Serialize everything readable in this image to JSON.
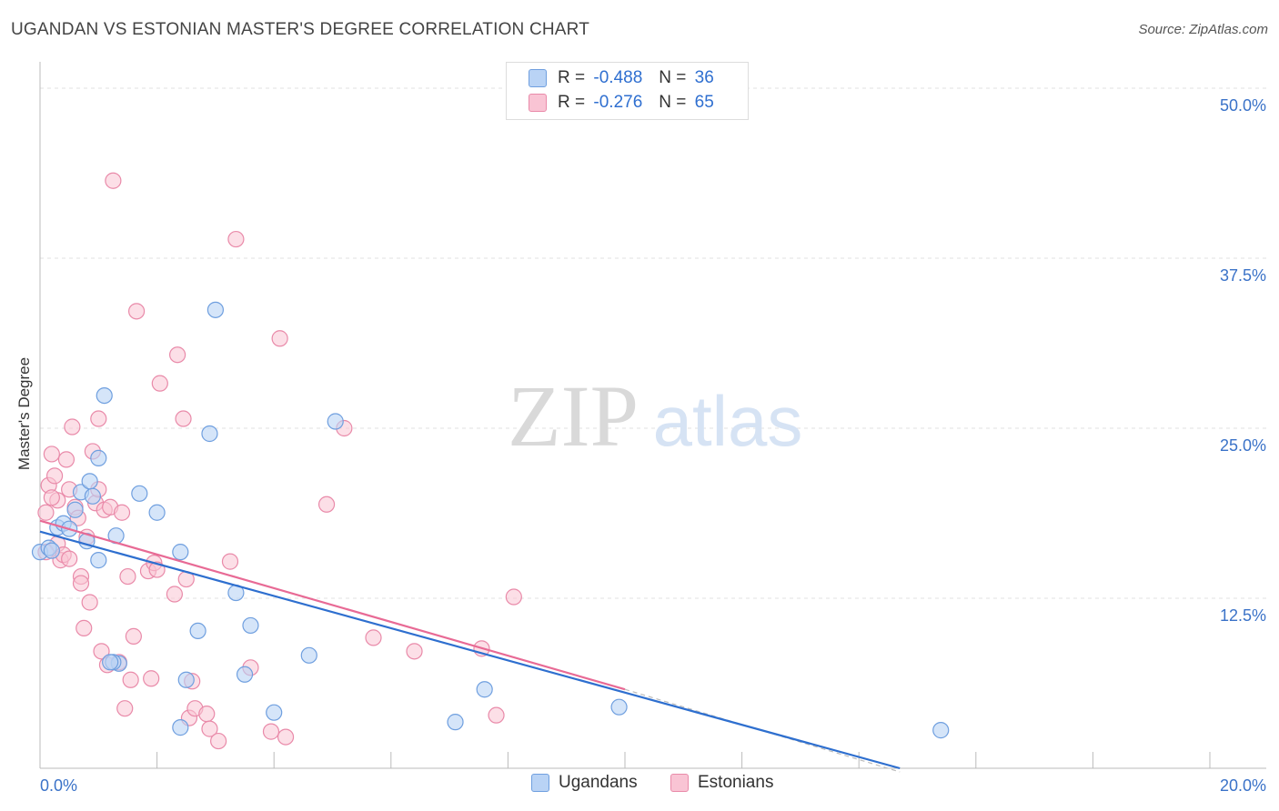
{
  "header": {
    "title": "UGANDAN VS ESTONIAN MASTER'S DEGREE CORRELATION CHART",
    "source": "Source: ZipAtlas.com"
  },
  "watermark": {
    "part1": "ZIP",
    "part2": "atlas"
  },
  "colors": {
    "ugandan_fill": "#b9d3f5",
    "ugandan_stroke": "#6f9fdf",
    "ugandan_line": "#2e6fcf",
    "estonian_fill": "#f9c4d4",
    "estonian_stroke": "#e98aa9",
    "estonian_line": "#e86a95",
    "tick_label": "#3a72c8"
  },
  "legend_top": {
    "rows": [
      {
        "r_label": "R =",
        "r_value": "-0.488",
        "n_label": "N =",
        "n_value": "36"
      },
      {
        "r_label": "R =",
        "r_value": "-0.276",
        "n_label": "N =",
        "n_value": "65"
      }
    ]
  },
  "legend_bottom": {
    "ugandans": "Ugandans",
    "estonians": "Estonians"
  },
  "chart_data": {
    "type": "scatter",
    "title": "UGANDAN VS ESTONIAN MASTER'S DEGREE CORRELATION CHART",
    "ylabel": "Master's Degree",
    "xlabel": "",
    "xlim": [
      0,
      20
    ],
    "ylim": [
      0,
      50
    ],
    "x_tick_labels": [
      "0.0%",
      "20.0%"
    ],
    "y_ticks": [
      {
        "value": 12.5,
        "label": "12.5%"
      },
      {
        "value": 25,
        "label": "25.0%"
      },
      {
        "value": 37.5,
        "label": "37.5%"
      },
      {
        "value": 50,
        "label": "50.0%"
      }
    ],
    "grid": "horizontal dashed",
    "series": [
      {
        "name": "Ugandans",
        "r": -0.488,
        "n": 36,
        "trend": {
          "x0": 0,
          "y0": 17.4,
          "x1": 14.7,
          "y1": 0
        },
        "points": [
          [
            0.0,
            15.9
          ],
          [
            0.15,
            16.2
          ],
          [
            0.3,
            17.7
          ],
          [
            0.4,
            18.0
          ],
          [
            0.6,
            19.0
          ],
          [
            0.7,
            20.3
          ],
          [
            0.8,
            16.7
          ],
          [
            0.85,
            21.1
          ],
          [
            1.0,
            22.8
          ],
          [
            1.0,
            15.3
          ],
          [
            1.1,
            27.4
          ],
          [
            1.35,
            7.7
          ],
          [
            1.25,
            7.8
          ],
          [
            1.3,
            17.1
          ],
          [
            1.7,
            20.2
          ],
          [
            2.0,
            18.8
          ],
          [
            2.4,
            15.9
          ],
          [
            2.4,
            3.0
          ],
          [
            2.5,
            6.5
          ],
          [
            2.7,
            10.1
          ],
          [
            2.9,
            24.6
          ],
          [
            3.0,
            33.7
          ],
          [
            3.35,
            12.9
          ],
          [
            3.5,
            6.9
          ],
          [
            3.6,
            10.5
          ],
          [
            4.0,
            4.1
          ],
          [
            4.6,
            8.3
          ],
          [
            5.05,
            25.5
          ],
          [
            7.1,
            3.4
          ],
          [
            7.6,
            5.8
          ],
          [
            9.9,
            4.5
          ],
          [
            15.4,
            2.8
          ],
          [
            0.2,
            16.0
          ],
          [
            0.5,
            17.6
          ],
          [
            0.9,
            20.0
          ],
          [
            1.2,
            7.8
          ]
        ]
      },
      {
        "name": "Estonians",
        "r": -0.276,
        "n": 65,
        "trend": {
          "x0": 0,
          "y0": 18.2,
          "x1": 10.0,
          "y1": 5.8
        },
        "points": [
          [
            0.1,
            18.8
          ],
          [
            0.15,
            20.8
          ],
          [
            0.2,
            23.1
          ],
          [
            0.25,
            21.5
          ],
          [
            0.3,
            19.7
          ],
          [
            0.3,
            16.5
          ],
          [
            0.35,
            15.3
          ],
          [
            0.4,
            15.7
          ],
          [
            0.45,
            22.7
          ],
          [
            0.5,
            20.5
          ],
          [
            0.55,
            25.1
          ],
          [
            0.6,
            19.2
          ],
          [
            0.65,
            18.4
          ],
          [
            0.7,
            14.1
          ],
          [
            0.7,
            13.6
          ],
          [
            0.75,
            10.3
          ],
          [
            0.8,
            17.0
          ],
          [
            0.85,
            12.2
          ],
          [
            0.9,
            23.3
          ],
          [
            0.95,
            19.5
          ],
          [
            1.0,
            20.5
          ],
          [
            1.0,
            25.7
          ],
          [
            1.05,
            8.6
          ],
          [
            1.1,
            19.0
          ],
          [
            1.15,
            7.6
          ],
          [
            1.2,
            19.2
          ],
          [
            1.25,
            43.2
          ],
          [
            1.35,
            7.8
          ],
          [
            1.4,
            18.8
          ],
          [
            1.45,
            4.4
          ],
          [
            1.5,
            14.1
          ],
          [
            1.55,
            6.5
          ],
          [
            1.6,
            9.7
          ],
          [
            1.65,
            33.6
          ],
          [
            1.85,
            14.5
          ],
          [
            1.95,
            15.1
          ],
          [
            2.0,
            14.6
          ],
          [
            2.05,
            28.3
          ],
          [
            2.3,
            12.8
          ],
          [
            2.35,
            30.4
          ],
          [
            2.45,
            25.7
          ],
          [
            2.5,
            13.9
          ],
          [
            2.55,
            3.7
          ],
          [
            2.6,
            6.4
          ],
          [
            2.65,
            4.4
          ],
          [
            2.85,
            4.0
          ],
          [
            2.9,
            2.9
          ],
          [
            3.05,
            2.0
          ],
          [
            3.25,
            15.2
          ],
          [
            3.35,
            38.9
          ],
          [
            3.6,
            7.4
          ],
          [
            3.95,
            2.7
          ],
          [
            4.1,
            31.6
          ],
          [
            4.2,
            2.3
          ],
          [
            4.9,
            19.4
          ],
          [
            5.2,
            25.0
          ],
          [
            5.7,
            9.6
          ],
          [
            6.4,
            8.6
          ],
          [
            7.55,
            8.8
          ],
          [
            7.8,
            3.9
          ],
          [
            8.1,
            12.6
          ],
          [
            0.1,
            15.9
          ],
          [
            0.2,
            19.9
          ],
          [
            1.9,
            6.6
          ],
          [
            0.5,
            15.4
          ]
        ]
      }
    ]
  }
}
